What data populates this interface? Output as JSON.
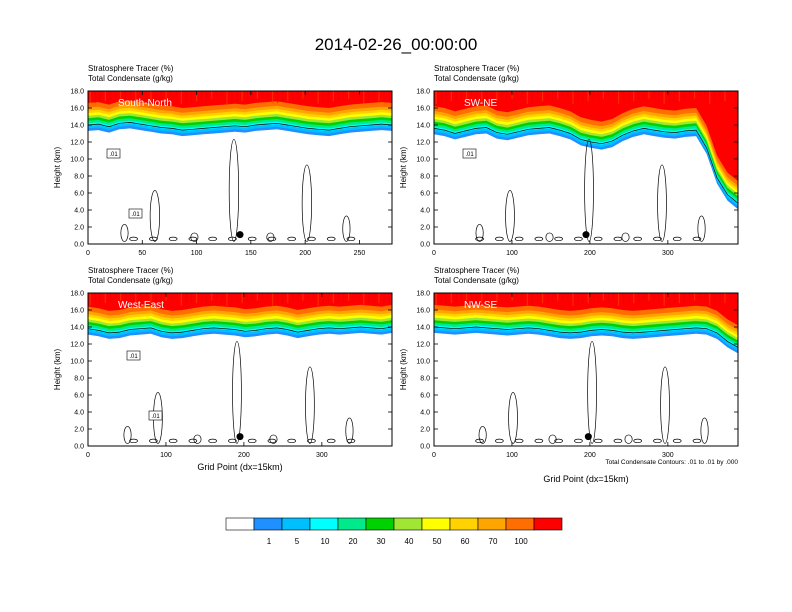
{
  "figure": {
    "title": "2014-02-26_00:00:00",
    "footnote": "Total Condensate Contours: .01 to .01 by .000"
  },
  "colorbar": {
    "colors": [
      "#ffffff",
      "#1e90ff",
      "#00bfff",
      "#00ffff",
      "#00e98a",
      "#00d100",
      "#a0e632",
      "#ffff00",
      "#ffd200",
      "#ffa500",
      "#ff6e00",
      "#ff0000"
    ],
    "labels": [
      "1",
      "5",
      "10",
      "20",
      "30",
      "40",
      "50",
      "60",
      "70",
      "100"
    ]
  },
  "chart_data": [
    {
      "type": "heatmap",
      "label": "South-North",
      "title_left_1": "Stratosphere Tracer   (%)",
      "title_left_2": "Total Condensate   (g/kg)",
      "xlabel": "",
      "ylabel": "Height (km)",
      "xlim": [
        0,
        280
      ],
      "ylim": [
        0,
        18
      ],
      "xticks": [
        "0",
        "50",
        "100",
        "150",
        "200",
        "250"
      ],
      "xtick_values": [
        0,
        50,
        100,
        150,
        200,
        250
      ],
      "yticks": [
        "0.0",
        "2.0",
        "4.0",
        "6.0",
        "8.0",
        "10.0",
        "12.0",
        "14.0",
        "16.0",
        "18.0"
      ],
      "tracer_base_km": [
        15.2,
        15.3,
        15.0,
        15.4,
        15.5,
        15.3,
        15.1,
        14.9,
        14.8,
        14.6,
        14.7,
        14.8,
        14.9,
        15.0,
        15.1,
        15.0,
        15.2,
        15.3,
        15.4,
        15.2,
        15.0,
        14.8,
        14.7,
        14.6,
        14.8,
        15.0,
        15.1,
        15.2,
        15.3,
        15.2
      ],
      "contour_labels": [
        ".01",
        ".01"
      ],
      "marker": {
        "x": 140,
        "y": 1.1
      }
    },
    {
      "type": "heatmap",
      "label": "SW-NE",
      "title_left_1": "Stratosphere Tracer   (%)",
      "title_left_2": "Total Condensate   (g/kg)",
      "xlabel": "",
      "ylabel": "Height (km)",
      "xlim": [
        0,
        390
      ],
      "ylim": [
        0,
        18
      ],
      "xticks": [
        "0",
        "100",
        "200",
        "300"
      ],
      "xtick_values": [
        0,
        100,
        200,
        300
      ],
      "yticks": [
        "0.0",
        "2.0",
        "4.0",
        "6.0",
        "8.0",
        "10.0",
        "12.0",
        "14.0",
        "16.0",
        "18.0"
      ],
      "tracer_base_km": [
        14.8,
        14.6,
        14.2,
        14.5,
        14.8,
        14.9,
        14.3,
        14.1,
        14.4,
        14.7,
        14.8,
        14.9,
        14.6,
        14.2,
        13.5,
        13.2,
        13.0,
        13.3,
        14.0,
        14.5,
        14.8,
        14.6,
        14.4,
        14.3,
        14.5,
        14.6,
        12.5,
        9.0,
        7.0,
        6.0
      ],
      "contour_labels": [
        ".01"
      ],
      "marker": {
        "x": 195,
        "y": 1.1
      }
    },
    {
      "type": "heatmap",
      "label": "West-East",
      "title_left_1": "Stratosphere Tracer   (%)",
      "title_left_2": "Total Condensate   (g/kg)",
      "xlabel": "Grid Point (dx=15km)",
      "ylabel": "Height (km)",
      "xlim": [
        0,
        390
      ],
      "ylim": [
        0,
        18
      ],
      "xticks": [
        "0",
        "100",
        "200",
        "300"
      ],
      "xtick_values": [
        0,
        100,
        200,
        300
      ],
      "yticks": [
        "0.0",
        "2.0",
        "4.0",
        "6.0",
        "8.0",
        "10.0",
        "12.0",
        "14.0",
        "16.0",
        "18.0"
      ],
      "tracer_base_km": [
        15.0,
        14.8,
        14.5,
        14.6,
        14.9,
        15.0,
        15.1,
        14.7,
        14.5,
        14.6,
        14.8,
        15.0,
        15.1,
        15.0,
        14.9,
        14.7,
        14.8,
        15.0,
        15.1,
        14.9,
        14.6,
        14.8,
        15.0,
        15.1,
        15.0,
        15.1,
        15.2,
        15.1,
        15.0,
        15.2
      ],
      "contour_labels": [
        ".01",
        ".01"
      ],
      "marker": {
        "x": 195,
        "y": 1.1
      }
    },
    {
      "type": "heatmap",
      "label": "NW-SE",
      "title_left_1": "Stratosphere Tracer   (%)",
      "title_left_2": "Total Condensate   (g/kg)",
      "xlabel": "Grid Point (dx=15km)",
      "ylabel": "Height (km)",
      "xlim": [
        0,
        390
      ],
      "ylim": [
        0,
        18
      ],
      "xticks": [
        "0",
        "100",
        "200",
        "300"
      ],
      "xtick_values": [
        0,
        100,
        200,
        300
      ],
      "yticks": [
        "0.0",
        "2.0",
        "4.0",
        "6.0",
        "8.0",
        "10.0",
        "12.0",
        "14.0",
        "16.0",
        "18.0"
      ],
      "tracer_base_km": [
        15.2,
        15.1,
        15.0,
        15.1,
        15.2,
        15.1,
        15.0,
        14.9,
        15.0,
        15.1,
        15.0,
        14.8,
        14.6,
        14.5,
        14.6,
        14.8,
        14.9,
        14.8,
        14.6,
        14.5,
        14.6,
        14.7,
        14.8,
        14.9,
        15.0,
        15.1,
        15.0,
        14.5,
        13.5,
        12.8
      ],
      "contour_labels": [],
      "marker": {
        "x": 198,
        "y": 1.1
      }
    }
  ]
}
